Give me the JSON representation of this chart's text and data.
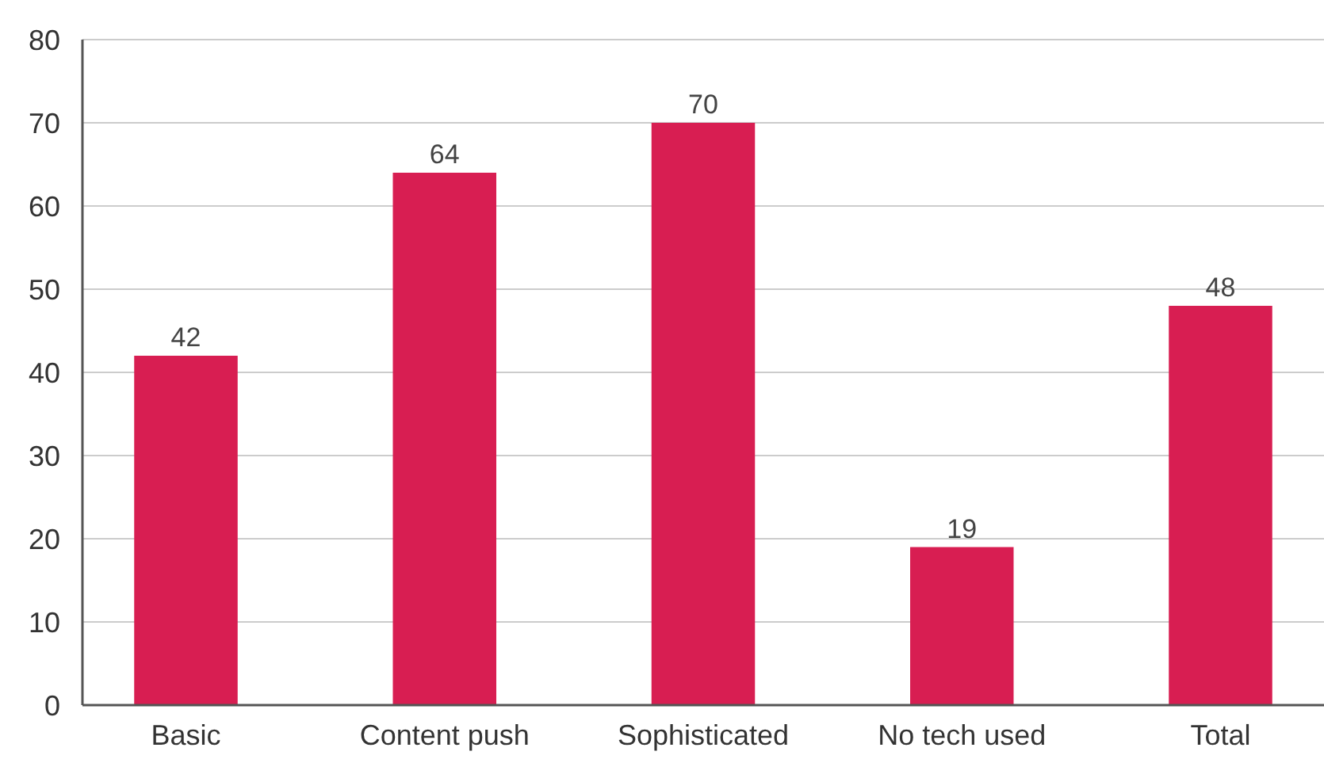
{
  "chart_data": {
    "type": "bar",
    "categories": [
      "Basic",
      "Content push",
      "Sophisticated",
      "No tech used",
      "Total"
    ],
    "values": [
      42,
      64,
      70,
      19,
      48
    ],
    "color": "#d81e52",
    "ylim": [
      0,
      80
    ],
    "yticks": [
      0,
      10,
      20,
      30,
      40,
      50,
      60,
      70,
      80
    ],
    "grid": "y",
    "data_labels": true
  }
}
